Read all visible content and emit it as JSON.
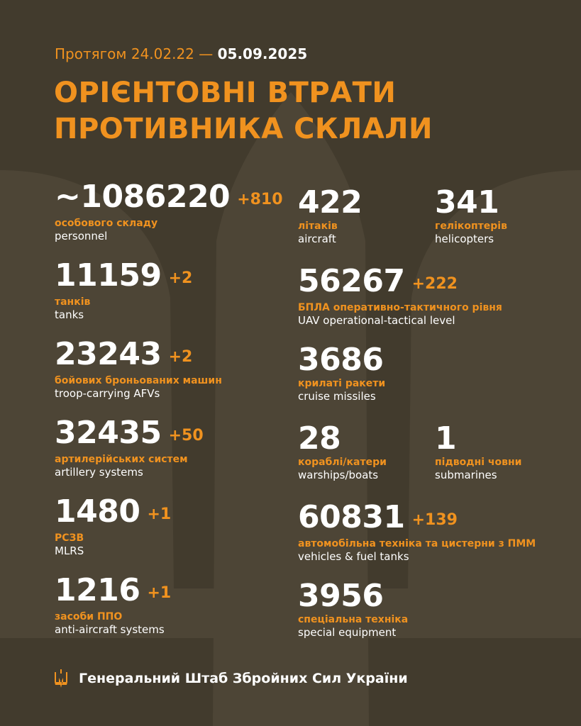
{
  "header": {
    "period_prefix": "Протягом 24.02.22 —",
    "period_end": "05.09.2025",
    "title_line1": "ОРІЄНТОВНІ ВТРАТИ",
    "title_line2": "ПРОТИВНИКА СКЛАЛИ"
  },
  "colors": {
    "background": "#423b2d",
    "accent": "#f0921f",
    "text": "#ffffff"
  },
  "items": [
    {
      "value": "~1086220",
      "delta": "+810",
      "ua": "особового складу",
      "en": "personnel"
    },
    {
      "value": "11159",
      "delta": "+2",
      "ua": "танків",
      "en": "tanks"
    },
    {
      "value": "23243",
      "delta": "+2",
      "ua": "бойових броньованих машин",
      "en": "troop-carrying AFVs"
    },
    {
      "value": "32435",
      "delta": "+50",
      "ua": "артилерійських систем",
      "en": "artillery systems"
    },
    {
      "value": "1480",
      "delta": "+1",
      "ua": "РСЗВ",
      "en": "MLRS"
    },
    {
      "value": "1216",
      "delta": "+1",
      "ua": "засоби ППО",
      "en": "anti-aircraft systems"
    },
    {
      "value": "422",
      "delta": "",
      "ua": "літаків",
      "en": "aircraft"
    },
    {
      "value": "341",
      "delta": "",
      "ua": "гелікоптерів",
      "en": "helicopters"
    },
    {
      "value": "56267",
      "delta": "+222",
      "ua": "БПЛА оперативно-тактичного рівня",
      "en": "UAV operational-tactical level"
    },
    {
      "value": "3686",
      "delta": "",
      "ua": "крилаті ракети",
      "en": "cruise missiles"
    },
    {
      "value": "28",
      "delta": "",
      "ua": "кораблі/катери",
      "en": "warships/boats"
    },
    {
      "value": "1",
      "delta": "",
      "ua": "підводні човни",
      "en": "submarines"
    },
    {
      "value": "60831",
      "delta": "+139",
      "ua": "автомобільна техніка та цистерни з ПММ",
      "en": "vehicles & fuel tanks"
    },
    {
      "value": "3956",
      "delta": "",
      "ua": "спеціальна техніка",
      "en": "special equipment"
    }
  ],
  "footer": {
    "icon": "trident-icon",
    "text": "Генеральний Штаб Збройних Сил України"
  }
}
